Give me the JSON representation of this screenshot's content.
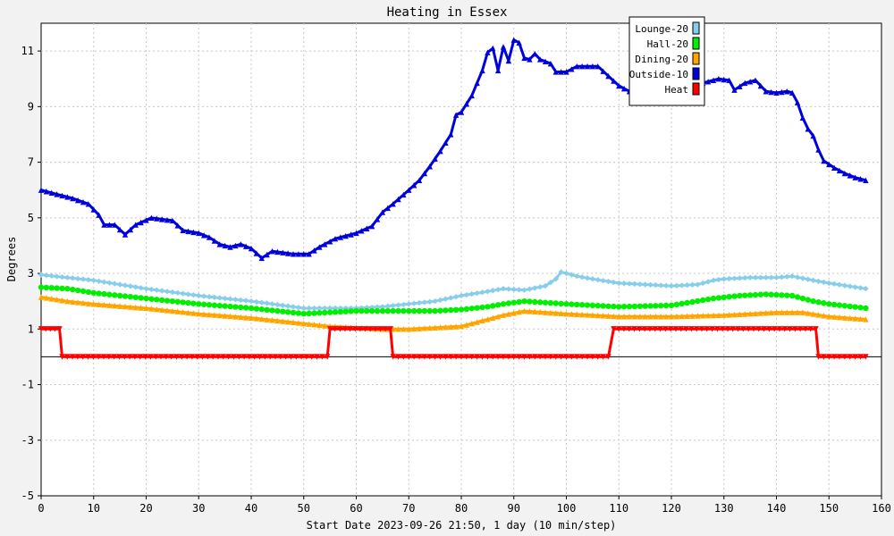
{
  "chart_data": {
    "type": "line",
    "title": "Heating in Essex",
    "xlabel": "Start Date 2023-09-26 21:50, 1 day (10 min/step)",
    "ylabel": "Degrees",
    "xlim": [
      0,
      160
    ],
    "ylim": [
      -5,
      12
    ],
    "xticks": [
      "0",
      "10",
      "20",
      "30",
      "40",
      "50",
      "60",
      "70",
      "80",
      "90",
      "100",
      "110",
      "120",
      "130",
      "140",
      "150",
      "160"
    ],
    "yticks": [
      "11",
      "9",
      "7",
      "5",
      "3",
      "1",
      "-1",
      "-3",
      "-5"
    ],
    "grid": true,
    "legend_position": "top-right",
    "series": [
      {
        "name": "Lounge-20",
        "color": "#87ceeb",
        "marker": "diamond",
        "points": [
          [
            0,
            2.95
          ],
          [
            5,
            2.85
          ],
          [
            10,
            2.75
          ],
          [
            20,
            2.45
          ],
          [
            30,
            2.2
          ],
          [
            40,
            2.0
          ],
          [
            50,
            1.75
          ],
          [
            55,
            1.75
          ],
          [
            60,
            1.75
          ],
          [
            65,
            1.8
          ],
          [
            70,
            1.9
          ],
          [
            75,
            2.0
          ],
          [
            80,
            2.2
          ],
          [
            85,
            2.35
          ],
          [
            88,
            2.45
          ],
          [
            92,
            2.4
          ],
          [
            96,
            2.55
          ],
          [
            98,
            2.8
          ],
          [
            99,
            3.05
          ],
          [
            102,
            2.9
          ],
          [
            105,
            2.8
          ],
          [
            110,
            2.65
          ],
          [
            120,
            2.55
          ],
          [
            125,
            2.6
          ],
          [
            128,
            2.75
          ],
          [
            130,
            2.8
          ],
          [
            135,
            2.85
          ],
          [
            140,
            2.85
          ],
          [
            143,
            2.9
          ],
          [
            147,
            2.75
          ],
          [
            150,
            2.65
          ],
          [
            157,
            2.45
          ]
        ]
      },
      {
        "name": "Hall-20",
        "color": "#00ee00",
        "marker": "circle",
        "points": [
          [
            0,
            2.5
          ],
          [
            5,
            2.45
          ],
          [
            10,
            2.3
          ],
          [
            20,
            2.1
          ],
          [
            30,
            1.9
          ],
          [
            40,
            1.75
          ],
          [
            50,
            1.55
          ],
          [
            55,
            1.6
          ],
          [
            60,
            1.65
          ],
          [
            65,
            1.65
          ],
          [
            70,
            1.65
          ],
          [
            75,
            1.65
          ],
          [
            80,
            1.7
          ],
          [
            85,
            1.8
          ],
          [
            88,
            1.9
          ],
          [
            92,
            2.0
          ],
          [
            96,
            1.95
          ],
          [
            100,
            1.9
          ],
          [
            105,
            1.85
          ],
          [
            110,
            1.8
          ],
          [
            120,
            1.85
          ],
          [
            128,
            2.1
          ],
          [
            133,
            2.2
          ],
          [
            138,
            2.25
          ],
          [
            143,
            2.2
          ],
          [
            147,
            2.0
          ],
          [
            150,
            1.9
          ],
          [
            157,
            1.75
          ]
        ]
      },
      {
        "name": "Dining-20",
        "color": "#ffa500",
        "marker": "triangle",
        "points": [
          [
            0,
            2.15
          ],
          [
            5,
            2.0
          ],
          [
            10,
            1.9
          ],
          [
            20,
            1.75
          ],
          [
            30,
            1.55
          ],
          [
            40,
            1.4
          ],
          [
            50,
            1.2
          ],
          [
            55,
            1.1
          ],
          [
            60,
            1.05
          ],
          [
            65,
            1.0
          ],
          [
            70,
            1.0
          ],
          [
            75,
            1.05
          ],
          [
            80,
            1.1
          ],
          [
            85,
            1.35
          ],
          [
            88,
            1.5
          ],
          [
            92,
            1.65
          ],
          [
            96,
            1.6
          ],
          [
            100,
            1.55
          ],
          [
            105,
            1.5
          ],
          [
            110,
            1.45
          ],
          [
            120,
            1.45
          ],
          [
            130,
            1.5
          ],
          [
            135,
            1.55
          ],
          [
            140,
            1.6
          ],
          [
            145,
            1.6
          ],
          [
            150,
            1.45
          ],
          [
            157,
            1.35
          ]
        ]
      },
      {
        "name": "Outside-10",
        "color": "#0000dd",
        "marker": "triangle",
        "points": [
          [
            0,
            6.0
          ],
          [
            3,
            5.85
          ],
          [
            6,
            5.7
          ],
          [
            9,
            5.5
          ],
          [
            11,
            5.1
          ],
          [
            12,
            4.75
          ],
          [
            14,
            4.75
          ],
          [
            16,
            4.4
          ],
          [
            18,
            4.75
          ],
          [
            21,
            5.0
          ],
          [
            25,
            4.9
          ],
          [
            27,
            4.55
          ],
          [
            30,
            4.45
          ],
          [
            32,
            4.3
          ],
          [
            34,
            4.05
          ],
          [
            36,
            3.95
          ],
          [
            38,
            4.05
          ],
          [
            40,
            3.9
          ],
          [
            42,
            3.55
          ],
          [
            44,
            3.8
          ],
          [
            46,
            3.75
          ],
          [
            48,
            3.7
          ],
          [
            51,
            3.7
          ],
          [
            53,
            3.95
          ],
          [
            56,
            4.25
          ],
          [
            60,
            4.45
          ],
          [
            63,
            4.7
          ],
          [
            65,
            5.2
          ],
          [
            67,
            5.5
          ],
          [
            70,
            6.0
          ],
          [
            72,
            6.35
          ],
          [
            74,
            6.85
          ],
          [
            76,
            7.4
          ],
          [
            78,
            8.0
          ],
          [
            79,
            8.7
          ],
          [
            80,
            8.8
          ],
          [
            82,
            9.4
          ],
          [
            84,
            10.3
          ],
          [
            85,
            10.95
          ],
          [
            86,
            11.1
          ],
          [
            87,
            10.3
          ],
          [
            88,
            11.15
          ],
          [
            89,
            10.65
          ],
          [
            90,
            11.4
          ],
          [
            91,
            11.3
          ],
          [
            92,
            10.75
          ],
          [
            93,
            10.7
          ],
          [
            94,
            10.9
          ],
          [
            95,
            10.7
          ],
          [
            97,
            10.55
          ],
          [
            98,
            10.25
          ],
          [
            100,
            10.25
          ],
          [
            102,
            10.45
          ],
          [
            104,
            10.45
          ],
          [
            106,
            10.45
          ],
          [
            108,
            10.1
          ],
          [
            110,
            9.75
          ],
          [
            112,
            9.55
          ],
          [
            114,
            9.65
          ],
          [
            116,
            9.8
          ],
          [
            118,
            9.6
          ],
          [
            120,
            9.7
          ],
          [
            122,
            9.75
          ],
          [
            125,
            9.8
          ],
          [
            127,
            9.9
          ],
          [
            129,
            10.0
          ],
          [
            131,
            9.95
          ],
          [
            132,
            9.6
          ],
          [
            134,
            9.85
          ],
          [
            136,
            9.95
          ],
          [
            138,
            9.55
          ],
          [
            140,
            9.5
          ],
          [
            142,
            9.55
          ],
          [
            143,
            9.5
          ],
          [
            144,
            9.15
          ],
          [
            145,
            8.6
          ],
          [
            146,
            8.2
          ],
          [
            147,
            7.95
          ],
          [
            148,
            7.45
          ],
          [
            149,
            7.05
          ],
          [
            151,
            6.8
          ],
          [
            153,
            6.6
          ],
          [
            155,
            6.45
          ],
          [
            157,
            6.35
          ]
        ]
      },
      {
        "name": "Heat",
        "color": "#ff0000",
        "marker": "triangle-down",
        "points": [
          [
            0,
            1
          ],
          [
            3.5,
            1
          ],
          [
            4,
            0
          ],
          [
            54.5,
            0
          ],
          [
            55,
            1
          ],
          [
            66.5,
            1
          ],
          [
            67,
            0
          ],
          [
            108,
            0
          ],
          [
            109,
            1
          ],
          [
            147.5,
            1
          ],
          [
            148,
            0
          ],
          [
            157,
            0
          ]
        ]
      }
    ]
  }
}
